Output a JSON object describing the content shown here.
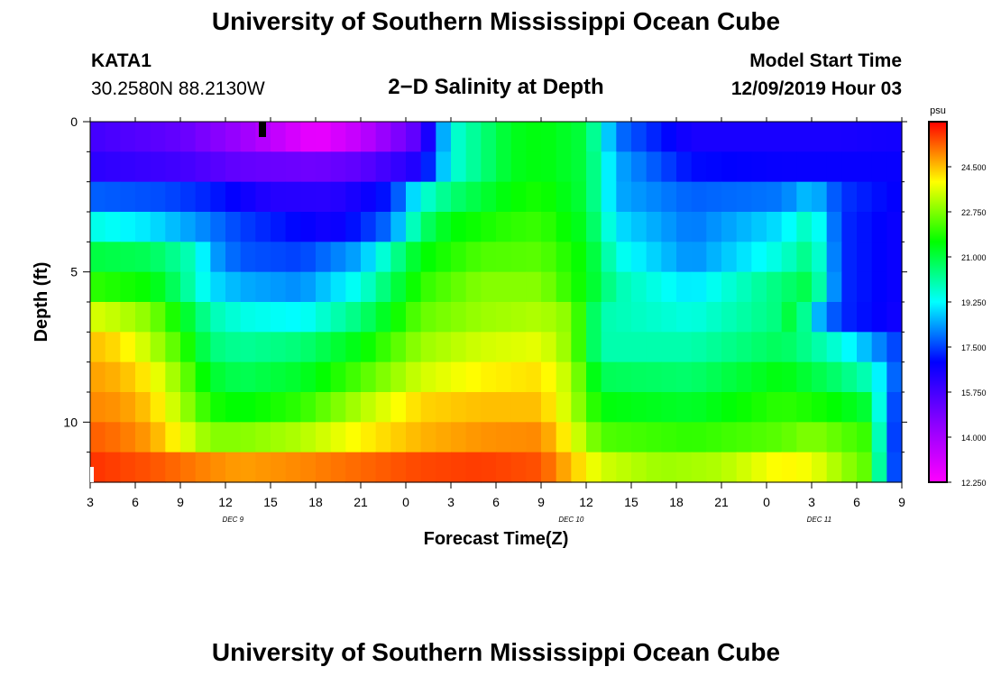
{
  "header": {
    "title_top": "University of Southern Mississippi Ocean Cube",
    "station": "KATA1",
    "coordinates": "30.2580N 88.2130W",
    "plot_title": "2−D Salinity at Depth",
    "model_label": "Model Start Time",
    "model_time": "12/09/2019 Hour 03",
    "title_bottom": "University of Southern Mississippi Ocean Cube"
  },
  "chart_data": {
    "type": "heatmap",
    "title": "2−D Salinity at Depth",
    "xlabel": "Forecast Time(Z)",
    "ylabel": "Depth (ft)",
    "units": "psu",
    "x_hours_range": [
      0,
      54
    ],
    "x_tick_labels": [
      "3",
      "6",
      "9",
      "12",
      "15",
      "18",
      "21",
      "0",
      "3",
      "6",
      "9",
      "12",
      "15",
      "18",
      "21",
      "0",
      "3",
      "6",
      "9"
    ],
    "x_day_labels": [
      {
        "label": "DEC 9",
        "hour": 9.5
      },
      {
        "label": "DEC 10",
        "hour": 32
      },
      {
        "label": "DEC 11",
        "hour": 48.5
      }
    ],
    "y_range": [
      0,
      12
    ],
    "y_tick_labels": [
      "0",
      "5",
      "10"
    ],
    "y_ticks": [
      0,
      5,
      10
    ],
    "y_minor_ticks": [
      1,
      2,
      3,
      4,
      6,
      7,
      8,
      9,
      11
    ],
    "colorbar": {
      "min": 12.25,
      "max": 26.25,
      "tick_values": [
        12.25,
        14.0,
        15.75,
        17.5,
        19.25,
        21.0,
        22.75,
        24.5
      ],
      "tick_labels": [
        "12.250",
        "14.000",
        "15.750",
        "17.500",
        "19.250",
        "21.000",
        "22.750",
        "24.500"
      ]
    },
    "depth_levels_ft": [
      0.5,
      1.5,
      2.5,
      3.5,
      4.5,
      5.5,
      6.5,
      7.5,
      8.5,
      9.5,
      10.5,
      11.5
    ],
    "salinity_profiles": [
      {
        "depth": 0.5,
        "hours": [
          0,
          6,
          10,
          15,
          18,
          22,
          24,
          28,
          30,
          33,
          35,
          40,
          46,
          50,
          53,
          54
        ],
        "psu": [
          15.8,
          15.2,
          14.2,
          12.6,
          13.5,
          15.5,
          19.5,
          21.3,
          21.5,
          21,
          18,
          16.5,
          16.5,
          16.5,
          16.6,
          16.6
        ]
      },
      {
        "depth": 1.5,
        "hours": [
          0,
          6,
          10,
          15,
          18,
          22,
          24,
          28,
          30,
          33,
          35,
          40,
          46,
          50,
          53,
          54
        ],
        "psu": [
          16.2,
          15.8,
          15.2,
          15,
          15.3,
          16.5,
          19.5,
          21.3,
          21.5,
          21,
          18.5,
          17,
          16.8,
          16.8,
          16.8,
          16.8
        ]
      },
      {
        "depth": 2.5,
        "hours": [
          0,
          5,
          8,
          12,
          16,
          18,
          20,
          22,
          24,
          28,
          30,
          33,
          35,
          40,
          46,
          48,
          50,
          54
        ],
        "psu": [
          17.8,
          17.6,
          17.2,
          16.3,
          16.2,
          16.6,
          17.2,
          19.5,
          20.5,
          21.6,
          21.8,
          21,
          18.5,
          17.8,
          18,
          18.8,
          17.4,
          16.8
        ]
      },
      {
        "depth": 3.5,
        "hours": [
          0,
          4,
          7,
          10,
          16,
          18,
          20,
          22,
          24,
          28,
          30,
          33,
          35,
          40,
          46,
          48,
          50,
          54
        ],
        "psu": [
          19.5,
          19,
          18.3,
          17.5,
          16.6,
          17.2,
          18,
          20.5,
          21.5,
          22,
          22.1,
          21.2,
          19,
          18,
          19,
          20,
          17.3,
          16.7
        ]
      },
      {
        "depth": 4.5,
        "hours": [
          0,
          4,
          7,
          8,
          10,
          14,
          18,
          22,
          26,
          30,
          33,
          35,
          40,
          46,
          48,
          50,
          54
        ],
        "psu": [
          21,
          20.8,
          19.8,
          18.5,
          17.7,
          17.5,
          18.5,
          21.5,
          22.3,
          22.4,
          21.5,
          19.5,
          18.2,
          19.6,
          20.5,
          17.3,
          16.7
        ]
      },
      {
        "depth": 5.5,
        "hours": [
          0,
          4,
          6,
          8,
          10,
          14,
          18,
          22,
          26,
          30,
          33,
          35,
          40,
          46,
          48,
          50,
          54
        ],
        "psu": [
          22,
          21.6,
          20.5,
          19,
          18.5,
          18.2,
          19.5,
          22,
          22.8,
          22.8,
          21.5,
          20,
          19,
          20.5,
          21,
          17.3,
          16.7
        ]
      },
      {
        "depth": 6.5,
        "hours": [
          0,
          2,
          4,
          6,
          8,
          10,
          14,
          18,
          22,
          26,
          30,
          32,
          34,
          40,
          46,
          47,
          48,
          50,
          54
        ],
        "psu": [
          23.6,
          23.3,
          22.8,
          21.5,
          20,
          19.5,
          19.2,
          20.5,
          22.5,
          23,
          23.2,
          22.8,
          20,
          19.5,
          20.5,
          21.5,
          19,
          17.3,
          16.6
        ]
      },
      {
        "depth": 7.5,
        "hours": [
          0,
          2,
          4,
          6,
          8,
          10,
          14,
          18,
          22,
          26,
          30,
          32,
          34,
          40,
          46,
          48,
          50,
          54
        ],
        "psu": [
          24.5,
          24.2,
          23.3,
          22.2,
          20.5,
          20.2,
          20.5,
          21.5,
          23,
          23.5,
          23.7,
          22.8,
          20,
          20,
          20.8,
          20.2,
          19.5,
          17.3
        ]
      },
      {
        "depth": 8.5,
        "hours": [
          0,
          2,
          4,
          6,
          8,
          10,
          14,
          18,
          22,
          26,
          30,
          32,
          34,
          40,
          46,
          48,
          50,
          52,
          54
        ],
        "psu": [
          24.8,
          24.6,
          24,
          22.8,
          21.2,
          20.8,
          21.2,
          22.3,
          23.5,
          24,
          24.2,
          23.2,
          20.8,
          20.6,
          21.5,
          21,
          20.5,
          19.8,
          17.2
        ]
      },
      {
        "depth": 9.5,
        "hours": [
          0,
          2,
          4,
          6,
          8,
          10,
          14,
          18,
          22,
          26,
          30,
          32,
          34,
          40,
          46,
          48,
          50,
          52,
          53,
          54
        ],
        "psu": [
          25,
          24.9,
          24.4,
          23.2,
          21.8,
          21.5,
          22,
          23.2,
          24.3,
          24.5,
          24.5,
          23.3,
          21.5,
          21.2,
          22,
          21.8,
          21.5,
          21,
          18,
          17.2
        ]
      },
      {
        "depth": 10.5,
        "hours": [
          0,
          2,
          4,
          6,
          8,
          10,
          14,
          18,
          22,
          26,
          30,
          32,
          34,
          40,
          46,
          48,
          50,
          52,
          53,
          54
        ],
        "psu": [
          25.4,
          25.2,
          24.8,
          23.8,
          22.8,
          22.8,
          23.2,
          24,
          24.6,
          24.9,
          25,
          23.8,
          22.3,
          22,
          22.4,
          22.8,
          22.4,
          22,
          17.8,
          17.2
        ]
      },
      {
        "depth": 11.5,
        "hours": [
          0,
          4,
          8,
          10,
          14,
          18,
          22,
          26,
          30,
          32,
          34,
          38,
          42,
          46,
          48,
          50,
          52,
          53,
          54
        ],
        "psu": [
          25.8,
          25.5,
          25,
          24.8,
          25,
          25.3,
          25.6,
          25.7,
          25.5,
          24.5,
          23.5,
          23,
          23.2,
          24,
          23.8,
          23,
          22.3,
          18,
          17.2
        ]
      }
    ]
  }
}
